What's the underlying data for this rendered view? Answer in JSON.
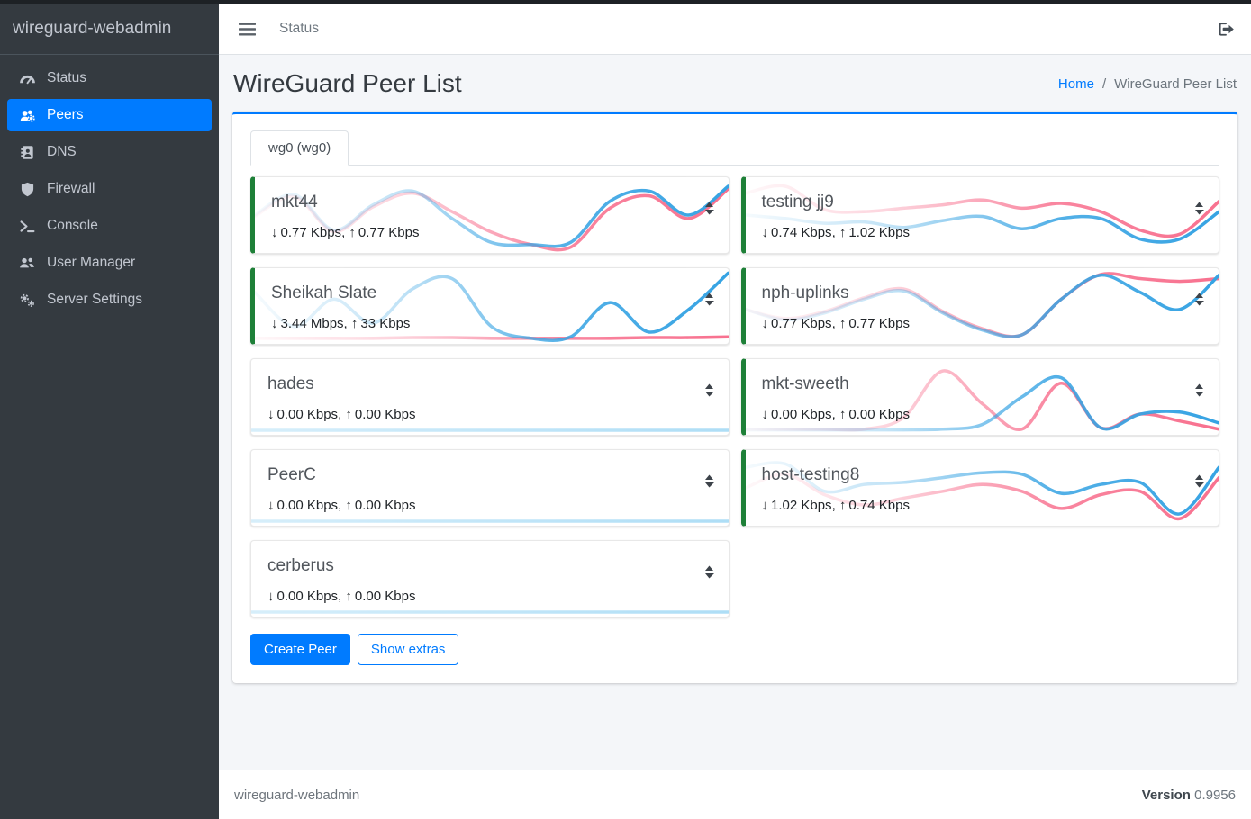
{
  "sidebar": {
    "brand": "wireguard-webadmin",
    "items": [
      {
        "label": "Status",
        "icon": "gauge-icon",
        "active": false
      },
      {
        "label": "Peers",
        "icon": "users-cog-icon",
        "active": true
      },
      {
        "label": "DNS",
        "icon": "address-book-icon",
        "active": false
      },
      {
        "label": "Firewall",
        "icon": "shield-icon",
        "active": false
      },
      {
        "label": "Console",
        "icon": "terminal-icon",
        "active": false
      },
      {
        "label": "User Manager",
        "icon": "users-icon",
        "active": false
      },
      {
        "label": "Server Settings",
        "icon": "cogs-icon",
        "active": false
      }
    ]
  },
  "navbar": {
    "link": "Status"
  },
  "page": {
    "title": "WireGuard Peer List",
    "breadcrumb_home": "Home",
    "breadcrumb_sep": "/",
    "breadcrumb_current": "WireGuard Peer List"
  },
  "tab": {
    "label": "wg0 (wg0)"
  },
  "stats_separator": ", ",
  "actions": {
    "create_peer": "Create Peer",
    "show_extras": "Show extras"
  },
  "footer": {
    "brand": "wireguard-webadmin",
    "version_label": "Version",
    "version_value": "0.9956"
  },
  "colors": {
    "accent": "#007bff",
    "online_green": "#1e8038",
    "spark_down": "#36a3e3",
    "spark_up": "#f8718f",
    "spark_idle": "#a5daf5"
  },
  "peer_columns": [
    [
      {
        "name": "mkt44",
        "down_rate": "0.77 Kbps",
        "up_rate": "0.77 Kbps",
        "online": true,
        "idle": false,
        "spark_down": [
          0.5,
          0.2,
          0.72,
          0.35,
          0.15,
          0.55,
          0.9,
          0.93,
          0.9,
          0.3,
          0.15,
          0.5,
          0.08
        ],
        "spark_up": [
          0.52,
          0.23,
          0.74,
          0.38,
          0.18,
          0.45,
          0.75,
          0.93,
          0.97,
          0.4,
          0.22,
          0.55,
          0.12
        ]
      },
      {
        "name": "Sheikah Slate",
        "down_rate": "3.44 Mbps",
        "up_rate": "33 Kbps",
        "online": true,
        "idle": false,
        "spark_down": [
          0.3,
          0.8,
          0.4,
          0.75,
          0.25,
          0.1,
          0.8,
          0.97,
          0.95,
          0.45,
          0.88,
          0.55,
          0.02
        ],
        "spark_up": [
          0.97,
          0.97,
          0.97,
          0.97,
          0.96,
          0.96,
          0.97,
          0.97,
          0.97,
          0.97,
          0.96,
          0.96,
          0.95
        ]
      },
      {
        "name": "hades",
        "down_rate": "0.00 Kbps",
        "up_rate": "0.00 Kbps",
        "online": false,
        "idle": true,
        "spark_down": [
          0.985,
          0.985,
          0.985,
          0.985,
          0.985,
          0.985,
          0.985,
          0.985,
          0.985,
          0.985,
          0.985,
          0.985,
          0.985
        ],
        "spark_up": [
          0.985,
          0.985,
          0.985,
          0.985,
          0.985,
          0.985,
          0.985,
          0.985,
          0.985,
          0.985,
          0.985,
          0.985,
          0.985
        ]
      },
      {
        "name": "PeerC",
        "down_rate": "0.00 Kbps",
        "up_rate": "0.00 Kbps",
        "online": false,
        "idle": true,
        "spark_down": [
          0.985,
          0.985,
          0.985,
          0.985,
          0.985,
          0.985,
          0.985,
          0.985,
          0.985,
          0.985,
          0.985,
          0.985,
          0.985
        ],
        "spark_up": [
          0.985,
          0.985,
          0.985,
          0.985,
          0.985,
          0.985,
          0.985,
          0.985,
          0.985,
          0.985,
          0.985,
          0.985,
          0.985
        ]
      },
      {
        "name": "cerberus",
        "down_rate": "0.00 Kbps",
        "up_rate": "0.00 Kbps",
        "online": false,
        "idle": true,
        "spark_down": [
          0.985,
          0.985,
          0.985,
          0.985,
          0.985,
          0.985,
          0.985,
          0.985,
          0.985,
          0.985,
          0.985,
          0.985,
          0.985
        ],
        "spark_up": [
          0.985,
          0.985,
          0.985,
          0.985,
          0.985,
          0.985,
          0.985,
          0.985,
          0.985,
          0.985,
          0.985,
          0.985,
          0.985
        ]
      }
    ],
    [
      {
        "name": "testing jj9",
        "down_rate": "0.74 Kbps",
        "up_rate": "1.02 Kbps",
        "online": true,
        "idle": false,
        "spark_down": [
          0.5,
          0.55,
          0.62,
          0.6,
          0.68,
          0.58,
          0.52,
          0.7,
          0.55,
          0.55,
          0.85,
          0.85,
          0.45
        ],
        "spark_up": [
          0.18,
          0.08,
          0.42,
          0.45,
          0.4,
          0.35,
          0.28,
          0.4,
          0.33,
          0.45,
          0.72,
          0.78,
          0.3
        ]
      },
      {
        "name": "nph-uplinks",
        "down_rate": "0.77 Kbps",
        "up_rate": "0.77 Kbps",
        "online": true,
        "idle": false,
        "spark_down": [
          0.55,
          0.7,
          0.6,
          0.4,
          0.28,
          0.6,
          0.85,
          0.92,
          0.4,
          0.05,
          0.3,
          0.55,
          0.05
        ],
        "spark_up": [
          0.55,
          0.68,
          0.58,
          0.38,
          0.25,
          0.58,
          0.83,
          0.92,
          0.4,
          0.04,
          0.1,
          0.14,
          0.1
        ]
      },
      {
        "name": "mkt-sweeth",
        "down_rate": "0.00 Kbps",
        "up_rate": "0.00 Kbps",
        "online": true,
        "idle": false,
        "spark_down": [
          0.98,
          0.98,
          0.98,
          0.98,
          0.98,
          0.97,
          0.9,
          0.5,
          0.22,
          0.95,
          0.75,
          0.72,
          0.88
        ],
        "spark_up": [
          0.97,
          0.97,
          0.97,
          0.97,
          0.8,
          0.12,
          0.6,
          0.97,
          0.3,
          0.95,
          0.75,
          0.85,
          0.97
        ]
      },
      {
        "name": "host-testing8",
        "down_rate": "1.02 Kbps",
        "up_rate": "0.74 Kbps",
        "online": true,
        "idle": false,
        "spark_down": [
          0.2,
          0.15,
          0.55,
          0.45,
          0.42,
          0.35,
          0.28,
          0.3,
          0.58,
          0.45,
          0.42,
          0.88,
          0.2
        ],
        "spark_up": [
          0.5,
          0.3,
          0.6,
          0.75,
          0.65,
          0.55,
          0.45,
          0.55,
          0.8,
          0.6,
          0.55,
          0.95,
          0.35
        ]
      }
    ]
  ]
}
